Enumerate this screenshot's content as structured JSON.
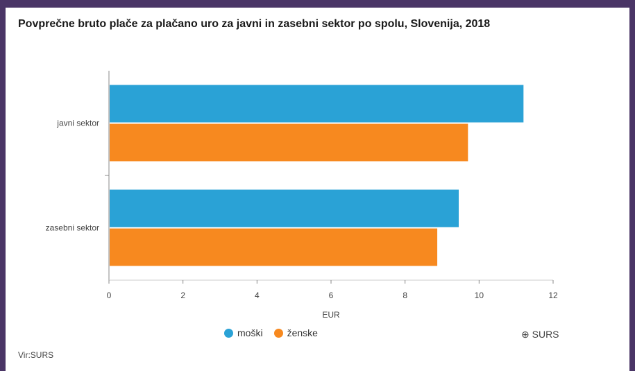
{
  "chart_title": "Povprečne bruto plače za plačano uro za javni in zasebni sektor po spolu, Slovenija, 2018",
  "credit": "⊕ SURS",
  "source": "Vir:SURS",
  "colors": {
    "series_0": "#2aa2d6",
    "series_1": "#f7891f"
  },
  "chart_data": {
    "type": "bar",
    "orientation": "horizontal",
    "title": "Povprečne bruto plače za plačano uro za javni in zasebni sektor po spolu, Slovenija, 2018",
    "categories": [
      "javni sektor",
      "zasebni sektor"
    ],
    "series": [
      {
        "name": "moški",
        "values": [
          11.2,
          9.45
        ]
      },
      {
        "name": "ženske",
        "values": [
          9.7,
          8.87
        ]
      }
    ],
    "xlabel": "EUR",
    "xlim": [
      0,
      12
    ],
    "xticks": [
      0,
      2,
      4,
      6,
      8,
      10,
      12
    ],
    "legend": "bottom",
    "grid": false
  }
}
